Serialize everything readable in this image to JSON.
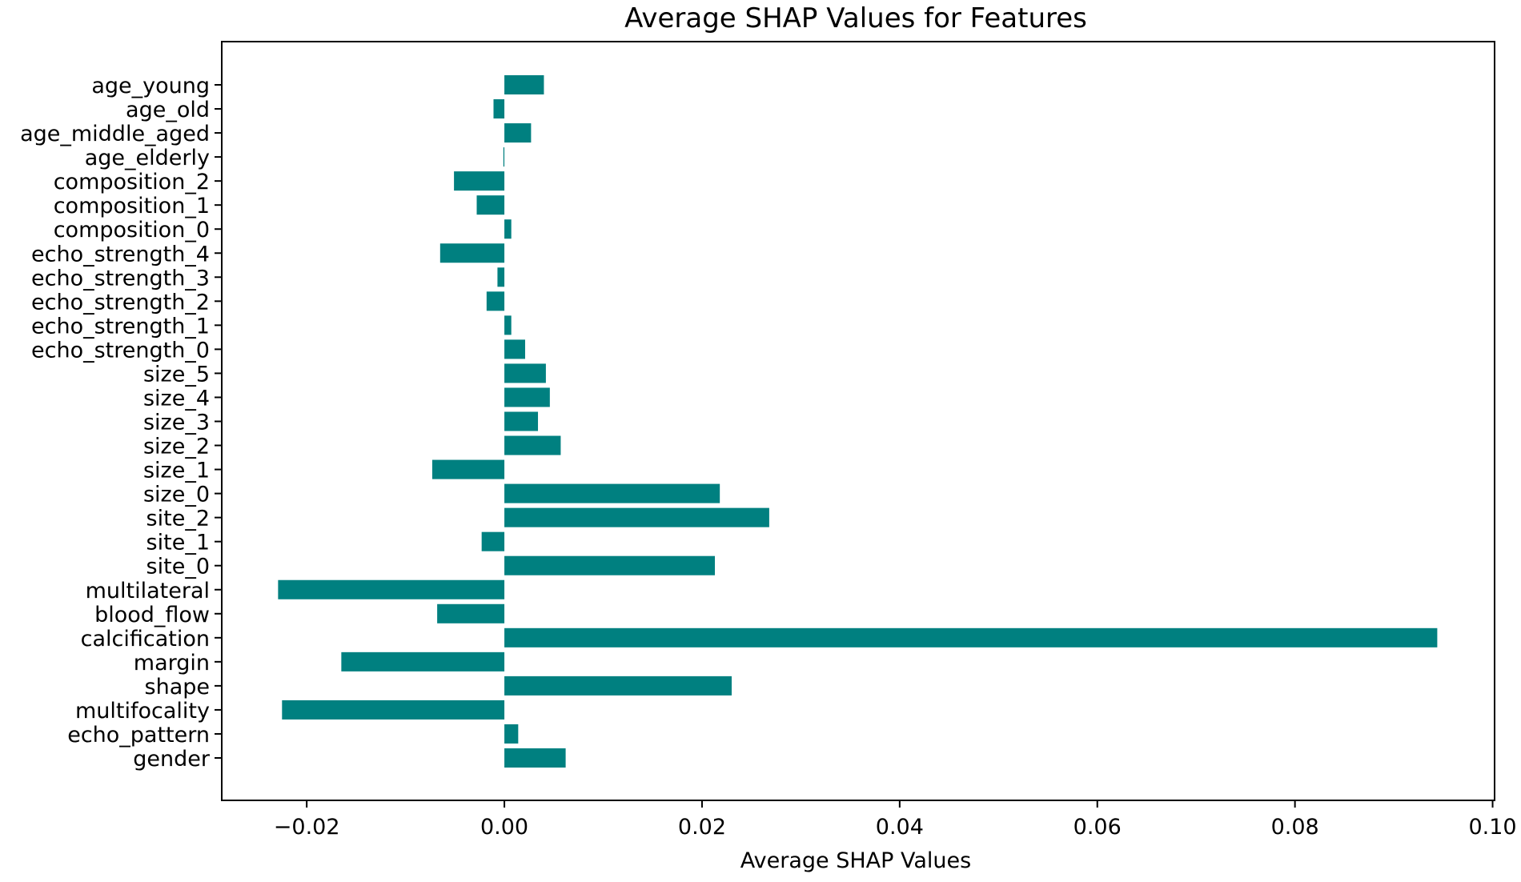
{
  "chart_data": {
    "type": "bar",
    "orientation": "horizontal",
    "title": "Average SHAP Values for Features",
    "xlabel": "Average SHAP Values",
    "ylabel": "",
    "xlim": [
      -0.0286,
      0.1002
    ],
    "xticks": [
      -0.02,
      0.0,
      0.02,
      0.04,
      0.06,
      0.08,
      0.1
    ],
    "xtick_labels": [
      "−0.02",
      "0.00",
      "0.02",
      "0.04",
      "0.06",
      "0.08",
      "0.10"
    ],
    "bar_color": "#008080",
    "grid": false,
    "legend": "none",
    "categories": [
      "age_young",
      "age_old",
      "age_middle_aged",
      "age_elderly",
      "composition_2",
      "composition_1",
      "composition_0",
      "echo_strength_4",
      "echo_strength_3",
      "echo_strength_2",
      "echo_strength_1",
      "echo_strength_0",
      "size_5",
      "size_4",
      "size_3",
      "size_2",
      "size_1",
      "size_0",
      "site_2",
      "site_1",
      "site_0",
      "multilateral",
      "blood_flow",
      "calcification",
      "margin",
      "shape",
      "multifocality",
      "echo_pattern",
      "gender"
    ],
    "values": [
      0.004,
      -0.0011,
      0.0027,
      -0.0001,
      -0.0051,
      -0.0028,
      0.0007,
      -0.0065,
      -0.0007,
      -0.0018,
      0.0007,
      0.0021,
      0.0042,
      0.0046,
      0.0034,
      0.0057,
      -0.0073,
      0.0218,
      0.0268,
      -0.0023,
      0.0213,
      -0.0229,
      -0.0068,
      0.0944,
      -0.0165,
      0.023,
      -0.0225,
      0.0014,
      0.0062
    ]
  }
}
